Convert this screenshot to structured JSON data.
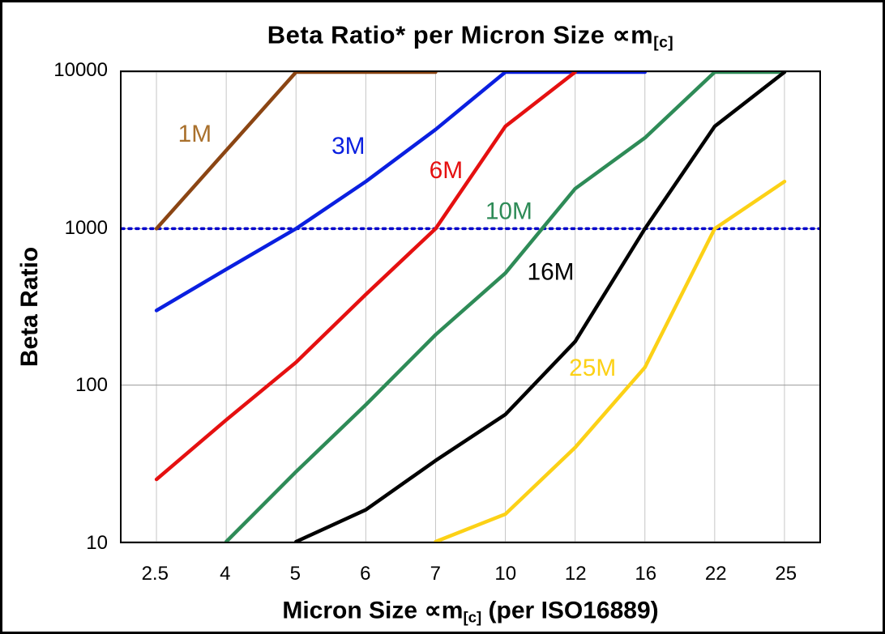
{
  "chart_data": {
    "type": "line",
    "title_main": "Beta Ratio* per Micron Size ∝m",
    "title_sub": "[c]",
    "xlabel_main": "Micron Size ∝m",
    "xlabel_sub": "[c]",
    "xlabel_rest": " (per ISO16889)",
    "ylabel": "Beta Ratio",
    "x_categories": [
      "2.5",
      "4",
      "5",
      "6",
      "7",
      "10",
      "12",
      "16",
      "22",
      "25"
    ],
    "y_scale": "log",
    "y_ticks": [
      10,
      100,
      1000,
      10000
    ],
    "y_tick_labels": [
      "10",
      "100",
      "1000",
      "10000"
    ],
    "ylim": [
      10,
      10000
    ],
    "grid": true,
    "grid_color": "#c6c6c6",
    "reference_line": {
      "y": 1000,
      "color": "#0000cc",
      "style": "dotted"
    },
    "series": [
      {
        "name": "1M",
        "color": "#8b4513",
        "label_color": "#a9702c",
        "label_pos": [
          0.55,
          3600
        ],
        "points": [
          [
            "2.5",
            1000
          ],
          [
            "5",
            10000
          ],
          [
            "7",
            10000
          ]
        ]
      },
      {
        "name": "3M",
        "color": "#0a1fe0",
        "label_color": "#0a1fe0",
        "label_pos": [
          2.75,
          3000
        ],
        "points": [
          [
            "2.5",
            300
          ],
          [
            "4",
            550
          ],
          [
            "5",
            1000
          ],
          [
            "6",
            2000
          ],
          [
            "7",
            4300
          ],
          [
            "10",
            10000
          ],
          [
            "16",
            10000
          ]
        ]
      },
      {
        "name": "6M",
        "color": "#e51010",
        "label_color": "#e51010",
        "label_pos": [
          4.15,
          2100
        ],
        "points": [
          [
            "2.5",
            25
          ],
          [
            "4",
            60
          ],
          [
            "5",
            140
          ],
          [
            "6",
            380
          ],
          [
            "7",
            1000
          ],
          [
            "10",
            4500
          ],
          [
            "12",
            10000
          ]
        ]
      },
      {
        "name": "10M",
        "color": "#2e8b57",
        "label_color": "#2e8b57",
        "label_pos": [
          5.05,
          1150
        ],
        "points": [
          [
            "4",
            10
          ],
          [
            "5",
            28
          ],
          [
            "6",
            75
          ],
          [
            "7",
            210
          ],
          [
            "10",
            520
          ],
          [
            "12",
            1800
          ],
          [
            "16",
            3800
          ],
          [
            "22",
            10000
          ],
          [
            "25",
            10000
          ]
        ]
      },
      {
        "name": "16M",
        "color": "#000000",
        "label_color": "#000000",
        "label_pos": [
          5.65,
          470
        ],
        "points": [
          [
            "5",
            10
          ],
          [
            "6",
            16
          ],
          [
            "7",
            33
          ],
          [
            "10",
            65
          ],
          [
            "12",
            190
          ],
          [
            "16",
            1000
          ],
          [
            "22",
            4500
          ],
          [
            "25",
            10000
          ]
        ]
      },
      {
        "name": "25M",
        "color": "#fcd116",
        "label_color": "#fcd116",
        "label_pos": [
          6.25,
          115
        ],
        "points": [
          [
            "7",
            10
          ],
          [
            "10",
            15
          ],
          [
            "12",
            40
          ],
          [
            "16",
            130
          ],
          [
            "22",
            1000
          ],
          [
            "25",
            2000
          ]
        ]
      }
    ]
  }
}
